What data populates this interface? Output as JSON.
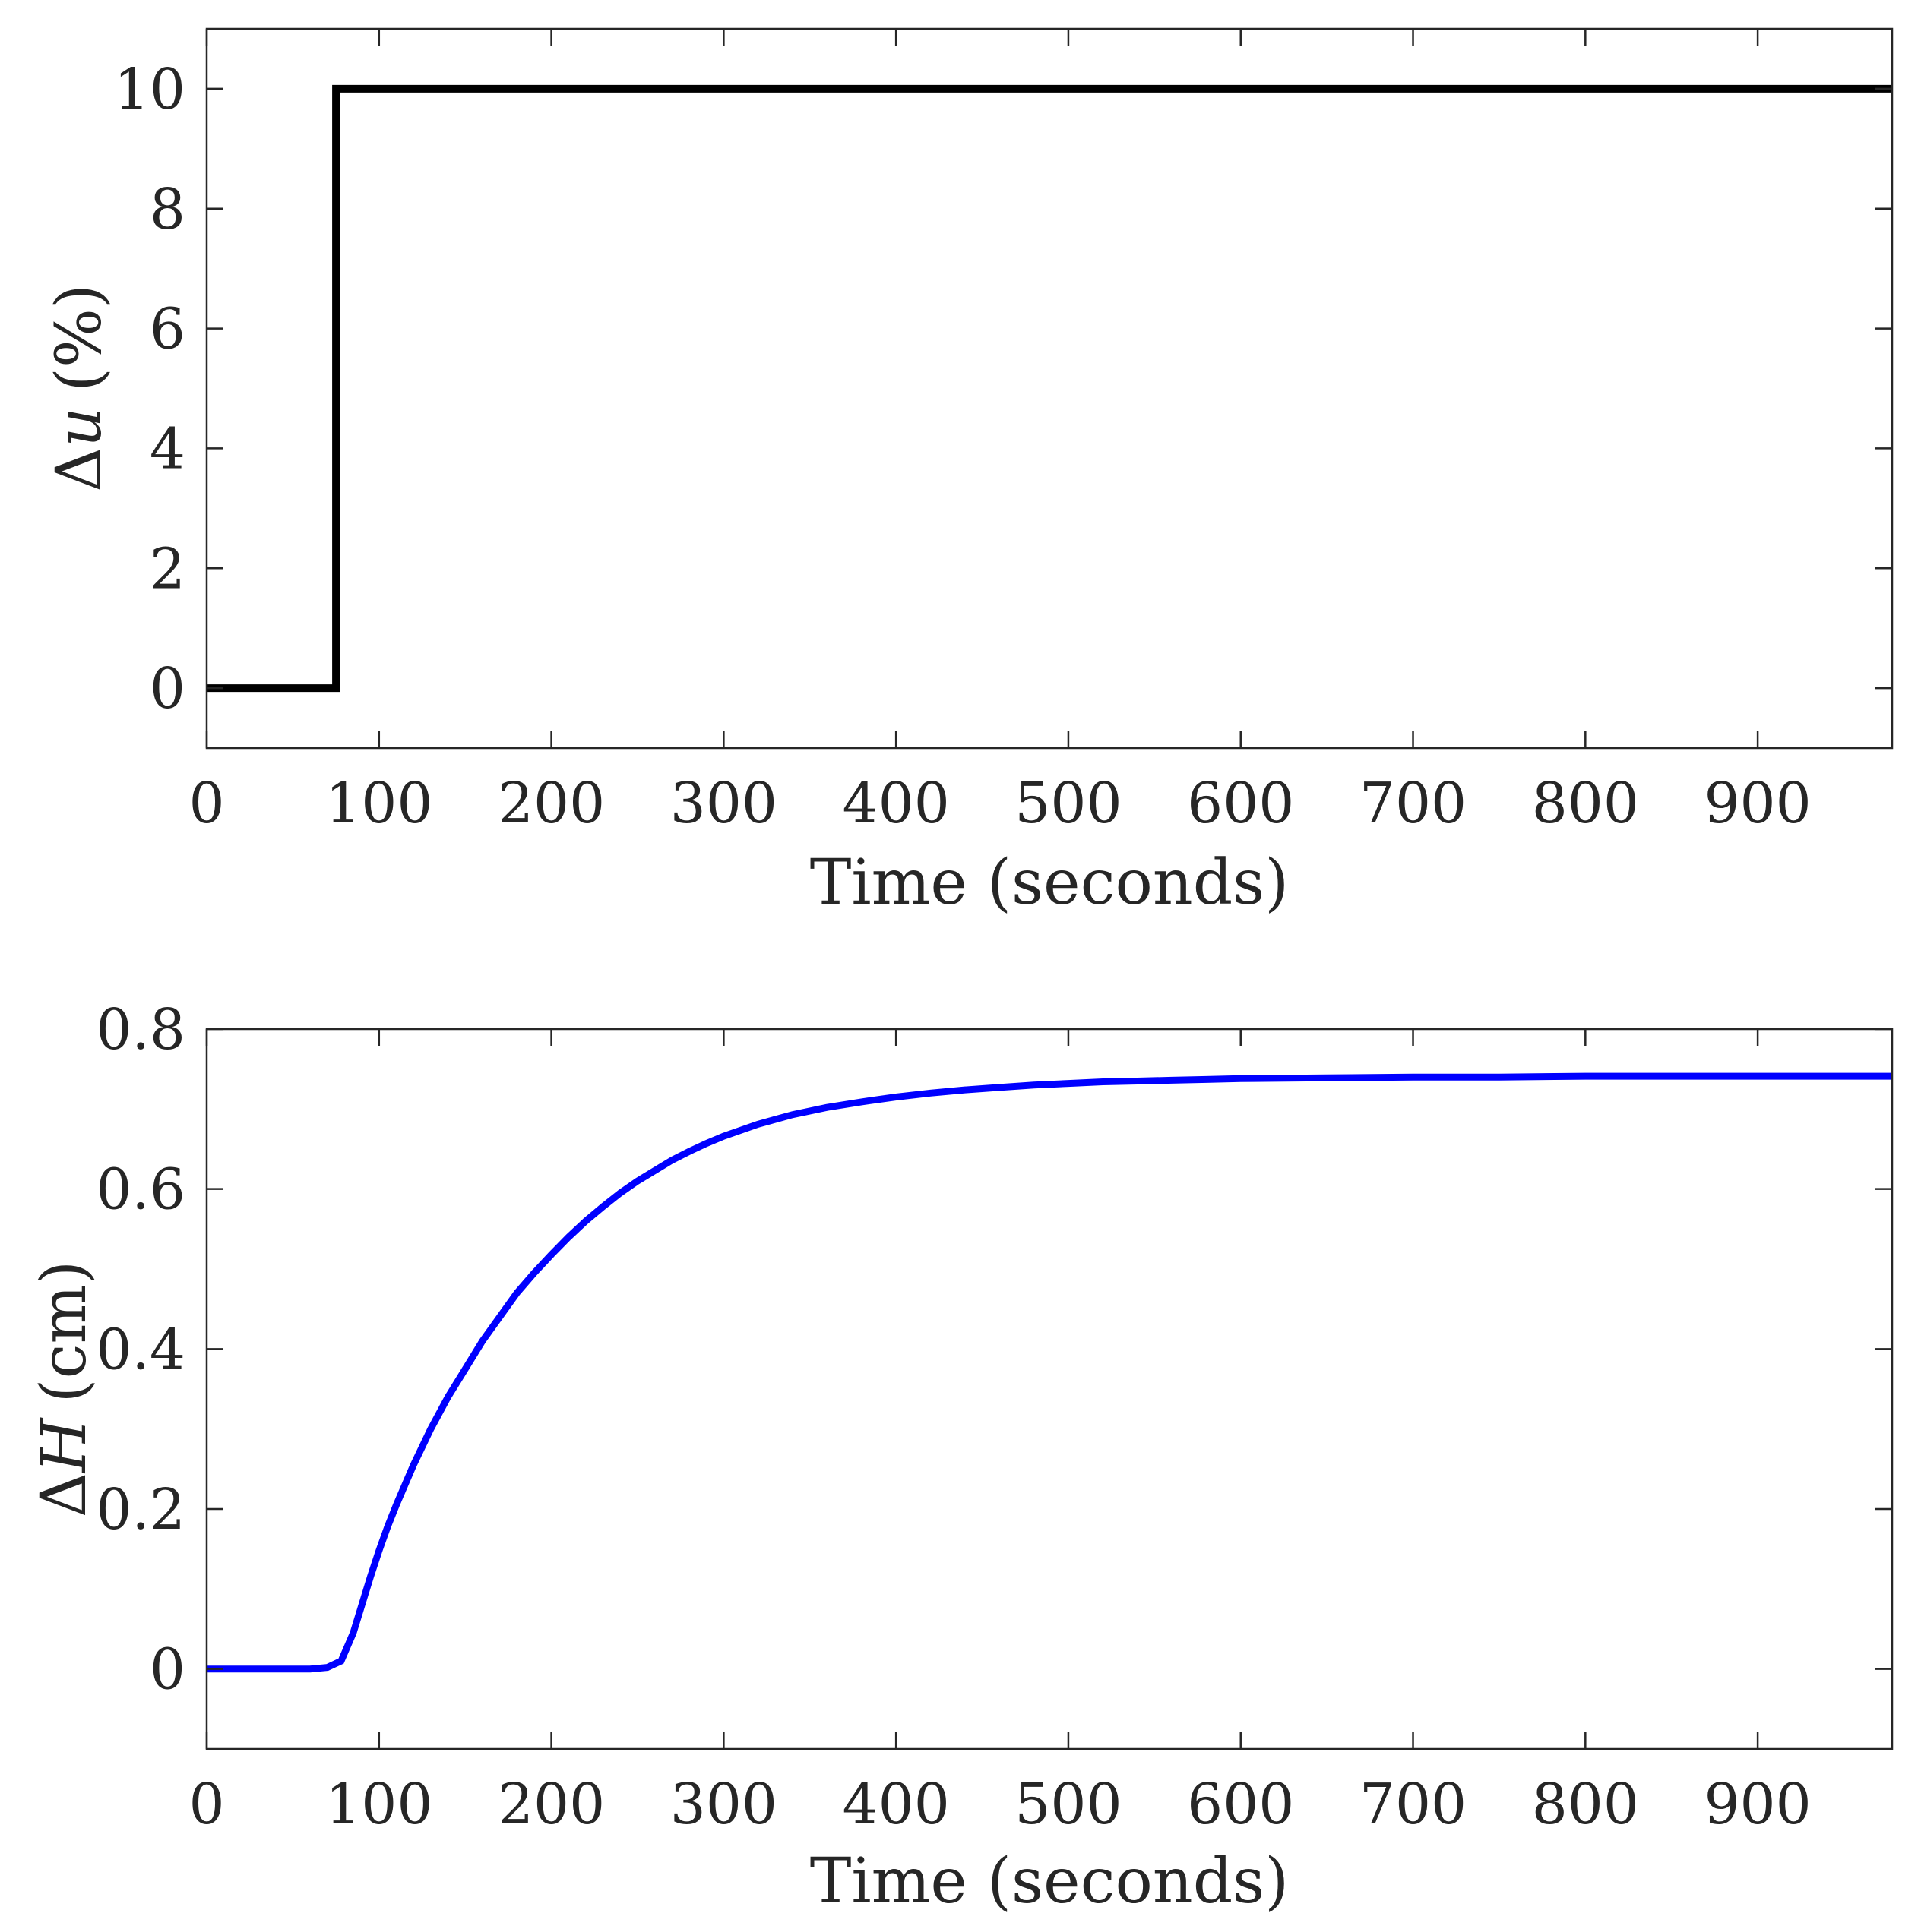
{
  "chart_data": [
    {
      "type": "line",
      "title": "",
      "xlabel": "Time (seconds)",
      "ylabel": "Δu (%)",
      "ylabel_parts": {
        "delta": "Δ",
        "var": "u",
        "unit": "(%)"
      },
      "xlim": [
        0,
        978
      ],
      "ylim": [
        -1,
        11
      ],
      "xticks": [
        0,
        100,
        200,
        300,
        400,
        500,
        600,
        700,
        800,
        900
      ],
      "yticks": [
        0,
        2,
        4,
        6,
        8,
        10
      ],
      "grid": false,
      "series": [
        {
          "color": "#000000",
          "x": [
            0,
            75,
            75,
            978
          ],
          "y": [
            0,
            0,
            10,
            10
          ]
        }
      ]
    },
    {
      "type": "line",
      "title": "",
      "xlabel": "Time (seconds)",
      "ylabel": "ΔH (cm)",
      "ylabel_parts": {
        "delta": "Δ",
        "var": "H",
        "unit": "(cm)"
      },
      "xlim": [
        0,
        978
      ],
      "ylim": [
        -0.1,
        0.8
      ],
      "xticks": [
        0,
        100,
        200,
        300,
        400,
        500,
        600,
        700,
        800,
        900
      ],
      "yticks": [
        0,
        0.2,
        0.4,
        0.6,
        0.8
      ],
      "grid": false,
      "series": [
        {
          "color": "#0000ff",
          "x": [
            0,
            10,
            20,
            30,
            40,
            50,
            60,
            70,
            78,
            85,
            90,
            95,
            100,
            105,
            110,
            115,
            120,
            130,
            140,
            150,
            160,
            170,
            180,
            190,
            200,
            210,
            220,
            230,
            240,
            250,
            260,
            270,
            280,
            290,
            300,
            320,
            340,
            360,
            380,
            400,
            420,
            440,
            460,
            480,
            500,
            520,
            540,
            560,
            580,
            600,
            650,
            700,
            750,
            800,
            850,
            900,
            950,
            978
          ],
          "y": [
            0,
            0,
            0,
            0,
            0,
            0,
            0,
            0.002,
            0.01,
            0.045,
            0.08,
            0.115,
            0.148,
            0.178,
            0.205,
            0.23,
            0.255,
            0.3,
            0.34,
            0.375,
            0.41,
            0.44,
            0.47,
            0.495,
            0.518,
            0.54,
            0.56,
            0.578,
            0.595,
            0.61,
            0.623,
            0.636,
            0.647,
            0.657,
            0.666,
            0.681,
            0.693,
            0.702,
            0.709,
            0.715,
            0.72,
            0.724,
            0.727,
            0.73,
            0.732,
            0.734,
            0.735,
            0.736,
            0.737,
            0.738,
            0.739,
            0.74,
            0.74,
            0.741,
            0.741,
            0.741,
            0.741,
            0.741
          ]
        }
      ]
    }
  ]
}
